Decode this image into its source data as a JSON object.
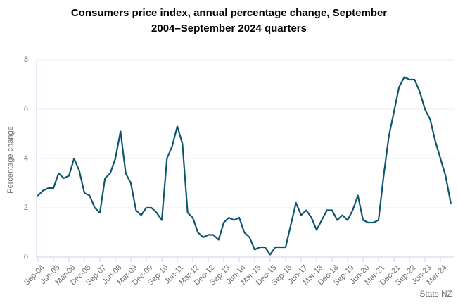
{
  "title": {
    "line1": "Consumers price index, annual percentage change, September",
    "line2": "2004–September 2024 quarters"
  },
  "source": "Stats NZ",
  "chart_data": {
    "type": "line",
    "title": "Consumers price index, annual percentage change, September 2004–September 2024 quarters",
    "xlabel": "",
    "ylabel": "Percentage change",
    "ylim": [
      0,
      8
    ],
    "y_ticks": [
      0,
      2,
      4,
      6,
      8
    ],
    "x_tick_labels": [
      "Sep-04",
      "Jun-05",
      "Mar-06",
      "Dec-06",
      "Sep-07",
      "Jun-08",
      "Mar-09",
      "Dec-09",
      "Sep-10",
      "Jun-11",
      "Mar-12",
      "Dec-12",
      "Sep-13",
      "Jun-14",
      "Mar-15",
      "Dec-15",
      "Sep-16",
      "Jun-17",
      "Mar-18",
      "Dec-18",
      "Sep-19",
      "Jun-20",
      "Mar-21",
      "Dec-21",
      "Sep-22",
      "Jun-23",
      "Mar-24"
    ],
    "x_range": [
      "Sep-04",
      "Sep-24"
    ],
    "x_frequency": "quarterly",
    "x_quarters_per_tick": 3,
    "grid": "horizontal",
    "legend": "none",
    "series": [
      {
        "name": "CPI annual percentage change",
        "values": [
          2.5,
          2.7,
          2.8,
          2.8,
          3.4,
          3.2,
          3.3,
          4.0,
          3.5,
          2.6,
          2.5,
          2.0,
          1.8,
          3.2,
          3.4,
          4.0,
          5.1,
          3.4,
          3.0,
          1.9,
          1.7,
          2.0,
          2.0,
          1.8,
          1.5,
          4.0,
          4.5,
          5.3,
          4.6,
          1.8,
          1.6,
          1.0,
          0.8,
          0.9,
          0.9,
          0.7,
          1.4,
          1.6,
          1.5,
          1.6,
          1.0,
          0.8,
          0.3,
          0.4,
          0.4,
          0.1,
          0.4,
          0.4,
          0.4,
          1.3,
          2.2,
          1.7,
          1.9,
          1.6,
          1.1,
          1.5,
          1.9,
          1.9,
          1.5,
          1.7,
          1.5,
          1.9,
          2.5,
          1.5,
          1.4,
          1.4,
          1.5,
          3.3,
          4.9,
          5.9,
          6.9,
          7.3,
          7.2,
          7.2,
          6.7,
          6.0,
          5.6,
          4.7,
          4.0,
          3.3,
          2.2
        ]
      }
    ],
    "colors": {
      "line": "#0e5570",
      "grid": "#ececec",
      "axis": "#ccd4ec",
      "text": "#6e6e6e",
      "title_text": "#000000"
    }
  }
}
